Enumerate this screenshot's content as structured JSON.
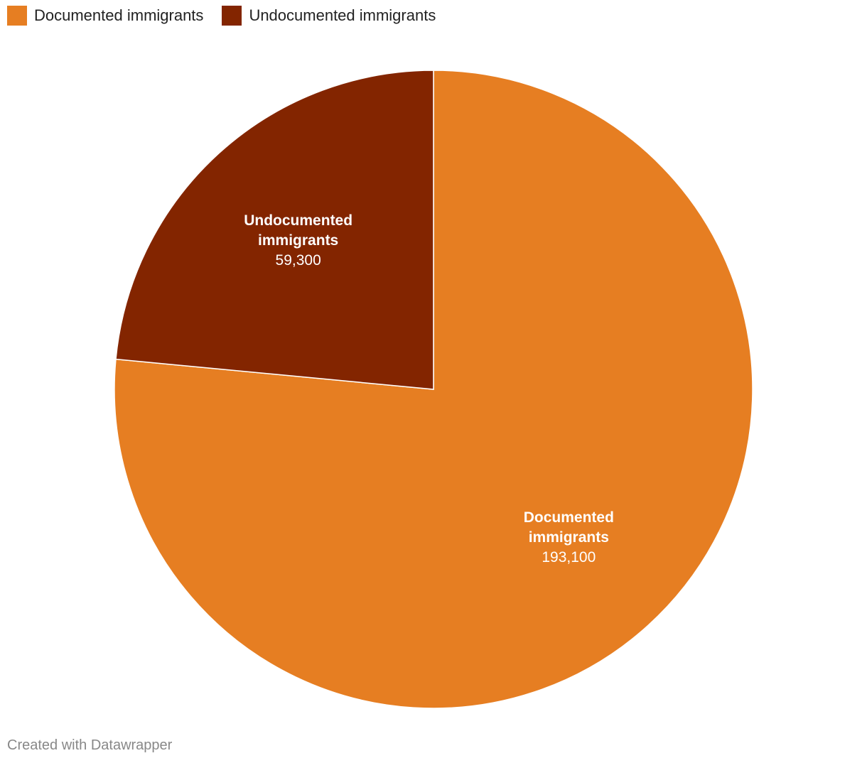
{
  "chart_data": {
    "type": "pie",
    "categories": [
      "Documented immigrants",
      "Undocumented immigrants"
    ],
    "values": [
      193100,
      59300
    ],
    "value_labels": [
      "193,100",
      "59,300"
    ],
    "colors": [
      "#e67e22",
      "#832500"
    ],
    "legend": "top-left",
    "credit": "Created with Datawrapper"
  }
}
